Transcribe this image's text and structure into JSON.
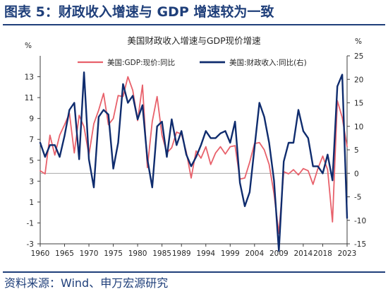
{
  "header": {
    "figure_title": "图表 5：财政收入增速与 GDP 增速较为一致"
  },
  "footer": {
    "source": "资料来源：Wind、申万宏源研究"
  },
  "colors": {
    "title": "#1f3f7a",
    "gdp_series": "#e8616b",
    "revenue_series": "#0f2c6e",
    "axis": "#3f3f3f"
  },
  "chart_data": {
    "type": "line",
    "title": "美国财政收入增速与GDP现价增速",
    "left_axis_unit": "%",
    "right_axis_unit": "%",
    "ylim_left": [
      -3,
      15
    ],
    "ylim_right": [
      -15,
      25
    ],
    "y_ticks_left": [
      "-3",
      "-1",
      "1",
      "3",
      "5",
      "7",
      "9",
      "11",
      "13"
    ],
    "y_ticks_right": [
      "-15",
      "-10",
      "-5",
      "0",
      "5",
      "10",
      "15",
      "20",
      "25"
    ],
    "x_ticks": [
      "1960",
      "1965",
      "1970",
      "1975",
      "1980",
      "1985",
      "1989",
      "1994",
      "1999",
      "2004",
      "2009",
      "2014",
      "2018",
      "2023"
    ],
    "xlim": [
      1960,
      2023
    ],
    "legend_position": "top",
    "series": [
      {
        "name": "美国:GDP:现价:同比",
        "axis": "left",
        "points": [
          [
            1960,
            4.0
          ],
          [
            1961,
            3.7
          ],
          [
            1962,
            7.4
          ],
          [
            1963,
            5.5
          ],
          [
            1964,
            7.4
          ],
          [
            1965,
            8.4
          ],
          [
            1966,
            9.5
          ],
          [
            1967,
            5.7
          ],
          [
            1968,
            9.3
          ],
          [
            1969,
            8.2
          ],
          [
            1970,
            5.5
          ],
          [
            1971,
            8.5
          ],
          [
            1972,
            9.8
          ],
          [
            1973,
            11.4
          ],
          [
            1974,
            8.4
          ],
          [
            1975,
            9.0
          ],
          [
            1976,
            11.2
          ],
          [
            1977,
            11.1
          ],
          [
            1978,
            13.0
          ],
          [
            1979,
            11.7
          ],
          [
            1980,
            8.8
          ],
          [
            1981,
            12.2
          ],
          [
            1982,
            4.3
          ],
          [
            1983,
            8.7
          ],
          [
            1984,
            11.1
          ],
          [
            1985,
            7.4
          ],
          [
            1986,
            5.7
          ],
          [
            1987,
            6.2
          ],
          [
            1988,
            7.7
          ],
          [
            1989,
            7.5
          ],
          [
            1990,
            5.8
          ],
          [
            1991,
            3.3
          ],
          [
            1992,
            5.9
          ],
          [
            1993,
            5.2
          ],
          [
            1994,
            6.3
          ],
          [
            1995,
            4.6
          ],
          [
            1996,
            5.7
          ],
          [
            1997,
            6.3
          ],
          [
            1998,
            5.6
          ],
          [
            1999,
            6.3
          ],
          [
            2000,
            6.4
          ],
          [
            2001,
            3.2
          ],
          [
            2002,
            3.3
          ],
          [
            2003,
            4.8
          ],
          [
            2004,
            6.6
          ],
          [
            2005,
            6.7
          ],
          [
            2006,
            6.0
          ],
          [
            2007,
            4.6
          ],
          [
            2008,
            1.8
          ],
          [
            2009,
            -2.0
          ],
          [
            2010,
            3.9
          ],
          [
            2011,
            3.7
          ],
          [
            2012,
            4.1
          ],
          [
            2013,
            3.6
          ],
          [
            2014,
            4.2
          ],
          [
            2015,
            4.0
          ],
          [
            2016,
            2.7
          ],
          [
            2017,
            4.2
          ],
          [
            2018,
            5.4
          ],
          [
            2019,
            4.1
          ],
          [
            2020,
            -0.9
          ],
          [
            2021,
            10.7
          ],
          [
            2022,
            9.1
          ],
          [
            2023,
            6.3
          ]
        ]
      },
      {
        "name": "美国:财政收入:同比(右)",
        "axis": "right",
        "points": [
          [
            1960,
            6.5
          ],
          [
            1961,
            3.5
          ],
          [
            1962,
            6.0
          ],
          [
            1963,
            6.0
          ],
          [
            1964,
            3.5
          ],
          [
            1965,
            8.0
          ],
          [
            1966,
            13.5
          ],
          [
            1967,
            15.0
          ],
          [
            1968,
            3.0
          ],
          [
            1969,
            21.5
          ],
          [
            1970,
            3.0
          ],
          [
            1971,
            -3.0
          ],
          [
            1972,
            12.0
          ],
          [
            1973,
            13.5
          ],
          [
            1974,
            12.5
          ],
          [
            1975,
            1.0
          ],
          [
            1976,
            6.5
          ],
          [
            1977,
            19.0
          ],
          [
            1978,
            15.0
          ],
          [
            1979,
            16.5
          ],
          [
            1980,
            11.5
          ],
          [
            1981,
            14.5
          ],
          [
            1982,
            3.0
          ],
          [
            1983,
            -3.0
          ],
          [
            1984,
            10.0
          ],
          [
            1985,
            11.0
          ],
          [
            1986,
            3.5
          ],
          [
            1987,
            11.5
          ],
          [
            1988,
            6.0
          ],
          [
            1989,
            9.0
          ],
          [
            1990,
            4.0
          ],
          [
            1991,
            1.5
          ],
          [
            1992,
            3.5
          ],
          [
            1993,
            6.0
          ],
          [
            1994,
            9.0
          ],
          [
            1995,
            7.5
          ],
          [
            1996,
            7.5
          ],
          [
            1997,
            8.5
          ],
          [
            1998,
            9.0
          ],
          [
            1999,
            6.5
          ],
          [
            2000,
            11.0
          ],
          [
            2001,
            -2.0
          ],
          [
            2002,
            -7.0
          ],
          [
            2003,
            -4.0
          ],
          [
            2004,
            5.5
          ],
          [
            2005,
            15.0
          ],
          [
            2006,
            12.0
          ],
          [
            2007,
            6.5
          ],
          [
            2008,
            -1.5
          ],
          [
            2009,
            -16.5
          ],
          [
            2010,
            2.5
          ],
          [
            2011,
            6.5
          ],
          [
            2012,
            6.5
          ],
          [
            2013,
            13.5
          ],
          [
            2014,
            9.0
          ],
          [
            2015,
            7.5
          ],
          [
            2016,
            1.5
          ],
          [
            2017,
            1.5
          ],
          [
            2018,
            0.0
          ],
          [
            2019,
            4.0
          ],
          [
            2020,
            -1.5
          ],
          [
            2021,
            18.5
          ],
          [
            2022,
            21.0
          ],
          [
            2023,
            -9.5
          ]
        ]
      }
    ]
  }
}
